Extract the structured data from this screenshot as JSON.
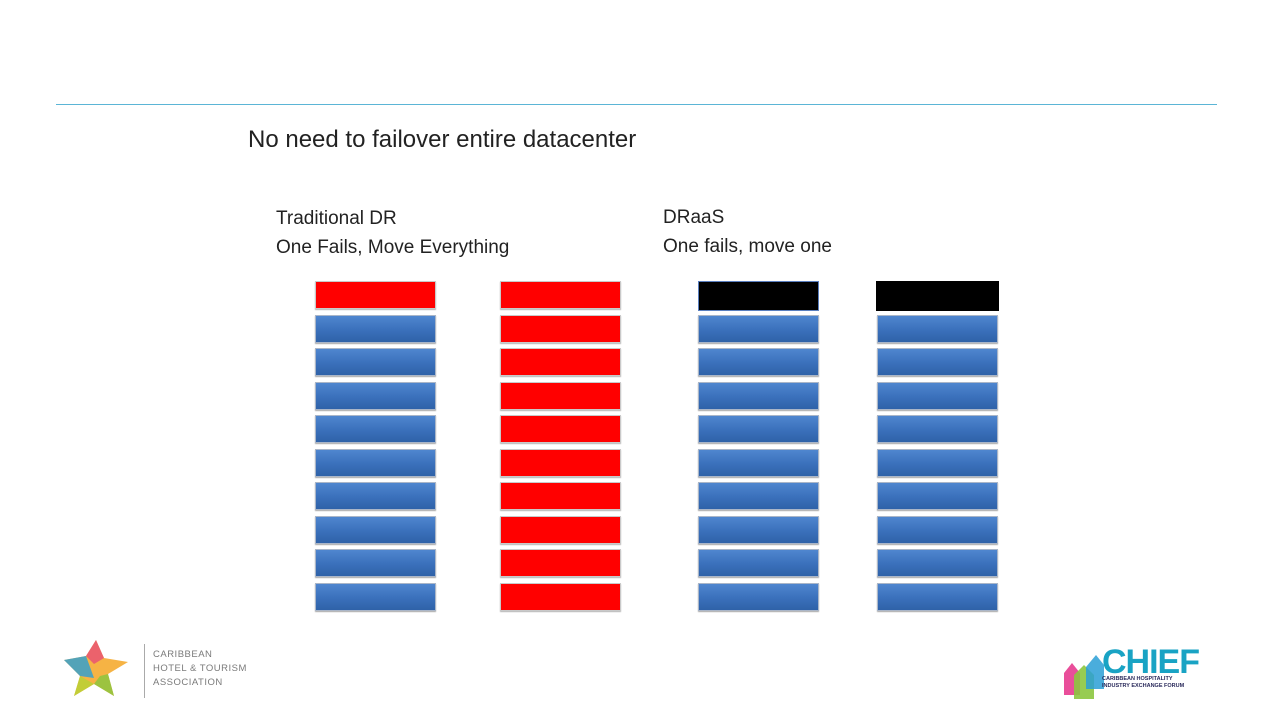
{
  "slide": {
    "title": "No need to failover entire datacenter",
    "left_label": {
      "line1": "Traditional DR",
      "line2": "One Fails, Move Everything"
    },
    "right_label": {
      "line1": "DRaaS",
      "line2": "One fails, move one"
    }
  },
  "stacks": [
    {
      "name": "traditional-primary",
      "blocks": [
        "red",
        "blue",
        "blue",
        "blue",
        "blue",
        "blue",
        "blue",
        "blue",
        "blue",
        "blue"
      ]
    },
    {
      "name": "traditional-recovery",
      "blocks": [
        "red",
        "red",
        "red",
        "red",
        "red",
        "red",
        "red",
        "red",
        "red",
        "red"
      ]
    },
    {
      "name": "draas-primary",
      "blocks": [
        "black",
        "blue",
        "blue",
        "blue",
        "blue",
        "blue",
        "blue",
        "blue",
        "blue",
        "blue"
      ]
    },
    {
      "name": "draas-recovery",
      "blocks": [
        "black-plain",
        "blue",
        "blue",
        "blue",
        "blue",
        "blue",
        "blue",
        "blue",
        "blue",
        "blue"
      ]
    }
  ],
  "footer": {
    "left_logo": {
      "line1": "CARIBBEAN",
      "line2": "HOTEL & TOURISM",
      "line3": "ASSOCIATION"
    },
    "right_logo": {
      "name": "CHIEF",
      "sub1": "CARIBBEAN HOSPITALITY",
      "sub2": "INDUSTRY EXCHANGE FORUM"
    }
  },
  "colors": {
    "rule": "#5bb5d6",
    "blue": "#3a70bb",
    "red": "#ff0000",
    "black": "#000000"
  }
}
